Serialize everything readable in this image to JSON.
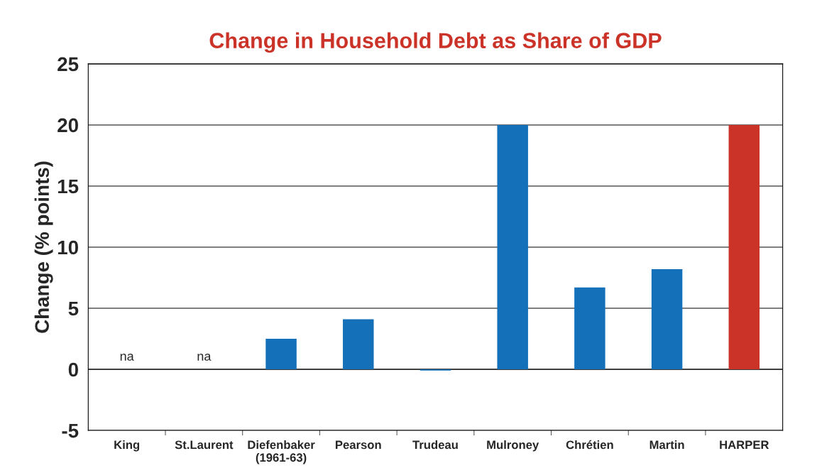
{
  "chart_data": {
    "type": "bar",
    "title": "Change in Household Debt as Share of GDP",
    "ylabel": "Change (% points)",
    "categories": [
      "King",
      "St.Laurent",
      "Diefenbaker\n(1961-63)",
      "Pearson",
      "Trudeau",
      "Mulroney",
      "Chrétien",
      "Martin",
      "HARPER"
    ],
    "values": [
      null,
      null,
      2.5,
      4.1,
      -0.1,
      20.0,
      6.7,
      8.2,
      20.0
    ],
    "value_labels": [
      "na",
      "na",
      null,
      null,
      null,
      null,
      null,
      null,
      null
    ],
    "colors": [
      "#1470b8",
      "#1470b8",
      "#1470b8",
      "#1470b8",
      "#1470b8",
      "#1470b8",
      "#1470b8",
      "#1470b8",
      "#cc3328"
    ],
    "ylim": [
      -5,
      25
    ],
    "yticks": [
      -5,
      0,
      5,
      10,
      15,
      20,
      25
    ],
    "grid": "y",
    "legend": false
  }
}
